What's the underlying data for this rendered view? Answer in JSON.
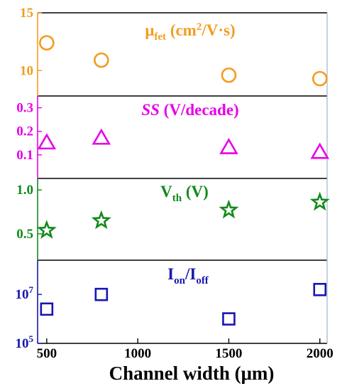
{
  "chart_data": {
    "type": "scatter",
    "x": [
      500,
      800,
      1500,
      2000
    ],
    "xlabel": "Channel width (μm)",
    "xlim": [
      450,
      2040
    ],
    "xticks": [
      500,
      1000,
      1500,
      2000
    ],
    "panels": [
      {
        "id": "mu",
        "title": "μfet (cm²/V·s)",
        "title_parts": [
          {
            "text": "μ"
          },
          {
            "text": "fet",
            "sub": true
          },
          {
            "text": " (cm"
          },
          {
            "text": "2",
            "sup": true
          },
          {
            "text": "/V·s)"
          }
        ],
        "color": "#F39C1F",
        "marker": "circle",
        "ylim": [
          7.8,
          15
        ],
        "yticks": [
          10,
          15
        ],
        "ytick_labels": [
          "10",
          "15"
        ],
        "scale": "linear",
        "values": [
          12.4,
          10.9,
          9.6,
          9.3
        ]
      },
      {
        "id": "ss",
        "title": "SS (V/decade)",
        "title_parts": [
          {
            "text": "SS",
            "italic": true
          },
          {
            "text": " (V/decade)"
          }
        ],
        "color": "#E800E8",
        "marker": "triangle",
        "ylim": [
          0.0,
          0.35
        ],
        "yticks": [
          0.1,
          0.2,
          0.3
        ],
        "ytick_labels": [
          "0.1",
          "0.2",
          "0.3"
        ],
        "scale": "linear",
        "values": [
          0.15,
          0.17,
          0.13,
          0.11
        ]
      },
      {
        "id": "vth",
        "title": "Vth (V)",
        "title_parts": [
          {
            "text": "V"
          },
          {
            "text": "th",
            "sub": true
          },
          {
            "text": " (V)"
          }
        ],
        "color": "#128A1C",
        "marker": "star",
        "ylim": [
          0.2,
          1.13
        ],
        "yticks": [
          0.5,
          1.0
        ],
        "ytick_labels": [
          "0.5",
          "1.0"
        ],
        "scale": "linear",
        "values": [
          0.54,
          0.65,
          0.77,
          0.86
        ]
      },
      {
        "id": "ionoff",
        "title": "Ion/Ioff",
        "title_parts": [
          {
            "text": "I"
          },
          {
            "text": "on",
            "sub": true
          },
          {
            "text": "/I"
          },
          {
            "text": "off",
            "sub": true
          }
        ],
        "color": "#1616B0",
        "marker": "square",
        "ylim": [
          5,
          8.4
        ],
        "yticks": [
          5,
          7
        ],
        "ytick_labels": [
          [
            "10",
            "5"
          ],
          [
            "10",
            "7"
          ]
        ],
        "scale": "log10",
        "values": [
          6.4,
          7.0,
          6.0,
          7.2
        ]
      }
    ]
  }
}
